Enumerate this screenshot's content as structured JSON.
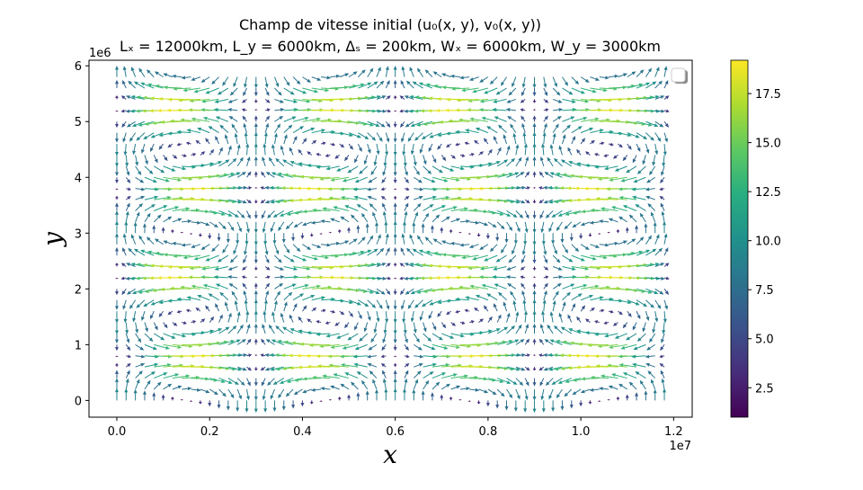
{
  "chart_data": {
    "type": "quiver",
    "title_line1": "Champ de vitesse initial (u₀(x, y), v₀(x, y))",
    "title_line2": "Lₓ = 12000km, L_y = 6000km, Δₛ = 200km, Wₓ = 6000km, W_y = 3000km",
    "xlabel": "x",
    "ylabel": "y",
    "x_offset_label": "1e7",
    "y_offset_label": "1e6",
    "xlim": [
      -600000,
      12400000
    ],
    "ylim": [
      -300000,
      6100000
    ],
    "x_ticks": [
      0,
      2000000,
      4000000,
      6000000,
      8000000,
      10000000,
      12000000
    ],
    "x_tick_labels": [
      "0.0",
      "0.2",
      "0.4",
      "0.6",
      "0.8",
      "1.0",
      "1.2"
    ],
    "y_ticks": [
      0,
      1000000,
      2000000,
      3000000,
      4000000,
      5000000,
      6000000
    ],
    "y_tick_labels": [
      "0",
      "1",
      "2",
      "3",
      "4",
      "5",
      "6"
    ],
    "grid": {
      "x_start": 0,
      "x_step": 200000,
      "x_count": 60,
      "y_start": 0,
      "y_step": 200000,
      "y_count": 30
    },
    "field": {
      "Lx": 12000000,
      "Ly": 6000000,
      "Wx": 6000000,
      "Wy": 3000000,
      "u_amplitude": 19,
      "v_amplitude": 9.5
    },
    "colorbar": {
      "min": 1.0,
      "max": 19.2,
      "ticks": [
        2.5,
        5.0,
        7.5,
        10.0,
        12.5,
        15.0,
        17.5
      ],
      "tick_labels": [
        "2.5",
        "5.0",
        "7.5",
        "10.0",
        "12.5",
        "15.0",
        "17.5"
      ],
      "colormap": "viridis"
    },
    "legend": {
      "placement": "upper right",
      "entries": []
    },
    "colors": {
      "low": "#440154",
      "mid": "#21918c",
      "high": "#fde725"
    }
  }
}
